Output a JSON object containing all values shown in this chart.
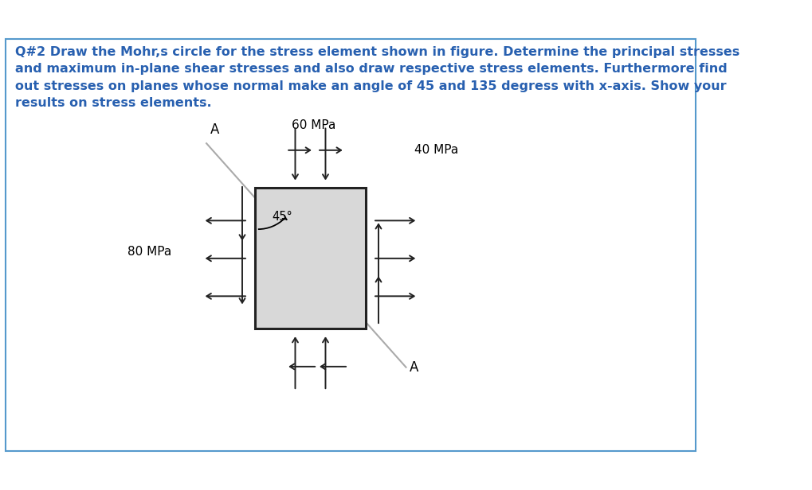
{
  "title_text": "Q#2 Draw the Mohr,s circle for the stress element shown in figure. Determine the principal stresses\nand maximum in-plane shear stresses and also draw respective stress elements. Furthermore find\nout stresses on planes whose normal make an angle of 45 and 135 degress with x-axis. Show your\nresults on stress elements.",
  "title_color": "#2860b0",
  "title_fontsize": 11.5,
  "bg_color": "#ffffff",
  "outer_border_color": "#5599cc",
  "box_fill_color": "#d8d8d8",
  "box_border_color": "#222222",
  "label_60MPa": "60 MPa",
  "label_40MPa": "40 MPa",
  "label_80MPa": "80 MPa",
  "label_45deg": "45°",
  "label_A_top": "A",
  "label_A_bottom": "A",
  "diag_color": "#aaaaaa",
  "arrow_color": "#222222"
}
